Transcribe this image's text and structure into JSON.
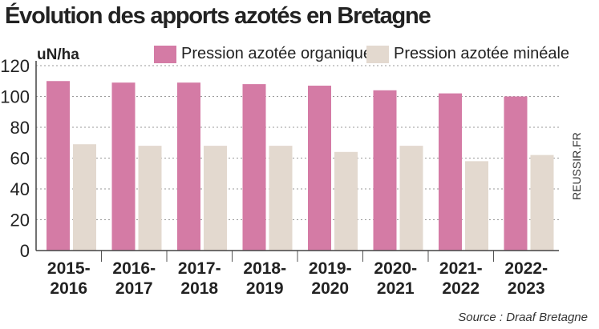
{
  "chart_data": {
    "type": "bar",
    "title": "Évolution des apports azotés en Bretagne",
    "ylabel": "uN/ha",
    "xlabel": "",
    "ylim": [
      0,
      120
    ],
    "yticks": [
      0,
      20,
      40,
      60,
      80,
      100,
      120
    ],
    "grid": true,
    "legend_position": "top-right",
    "categories": [
      {
        "line1": "2015-",
        "line2": "2016"
      },
      {
        "line1": "2016-",
        "line2": "2017"
      },
      {
        "line1": "2017-",
        "line2": "2018"
      },
      {
        "line1": "2018-",
        "line2": "2019"
      },
      {
        "line1": "2019-",
        "line2": "2020"
      },
      {
        "line1": "2020-",
        "line2": "2021"
      },
      {
        "line1": "2021-",
        "line2": "2022"
      },
      {
        "line1": "2022-",
        "line2": "2023"
      }
    ],
    "series": [
      {
        "name": "Pression azotée organique",
        "color": "#d47ba5",
        "values": [
          110,
          109,
          109,
          108,
          107,
          104,
          102,
          100
        ]
      },
      {
        "name": "Pression azotée minéale",
        "color": "#e3d9cf",
        "values": [
          69,
          68,
          68,
          68,
          64,
          68,
          58,
          62
        ]
      }
    ]
  },
  "source": "Source : Draaf Bretagne",
  "credit": "REUSSIR.FR"
}
